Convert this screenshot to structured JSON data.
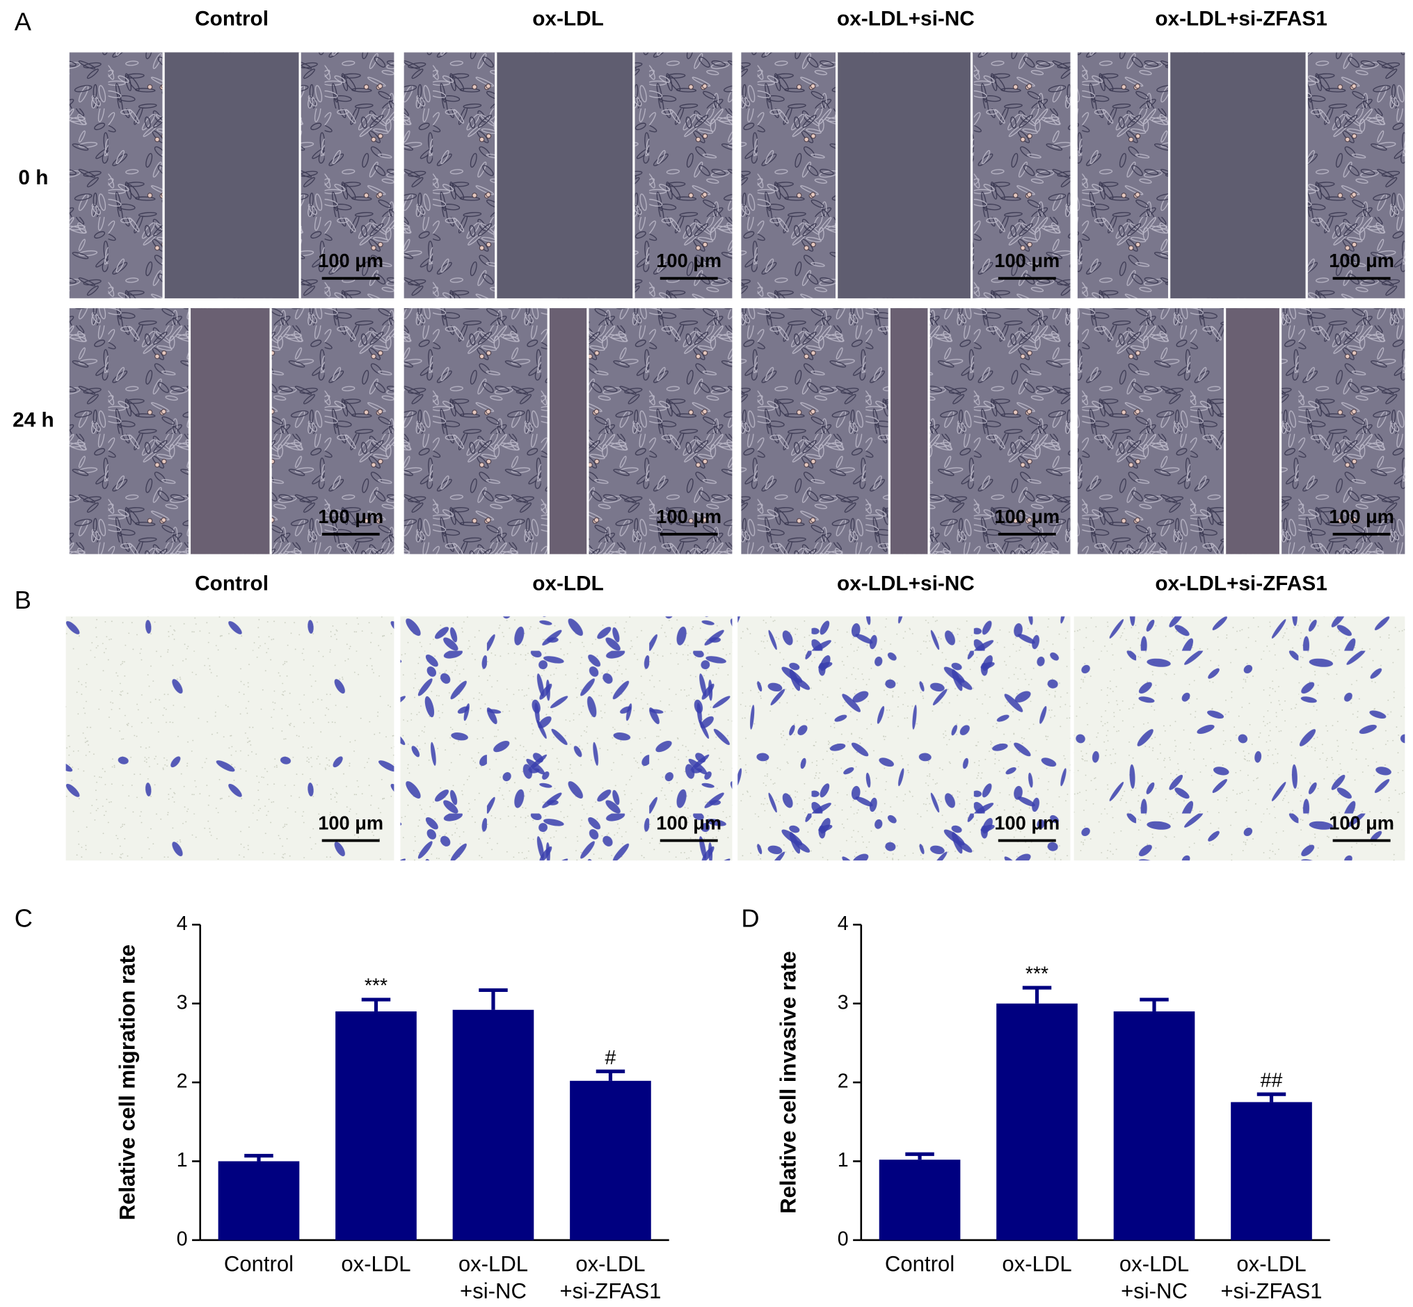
{
  "panel_labels": [
    "A",
    "B",
    "C",
    "D"
  ],
  "columns": [
    "Control",
    "ox-LDL",
    "ox-LDL+si-NC",
    "ox-LDL+si-ZFAS1"
  ],
  "rows": [
    "0 h",
    "24 h"
  ],
  "scale_bar": "100 μm",
  "chart_data": [
    {
      "type": "bar",
      "ylabel": "Relative cell migration rate",
      "categories": [
        [
          "Control"
        ],
        [
          "ox-LDL"
        ],
        [
          "ox-LDL",
          "+si-NC"
        ],
        [
          "ox-LDL",
          "+si-ZFAS1"
        ]
      ],
      "values": [
        1.0,
        2.9,
        2.92,
        2.02
      ],
      "errors": [
        0.07,
        0.15,
        0.25,
        0.12
      ],
      "color": "#000080",
      "ylim": [
        0,
        4
      ],
      "yticks": [
        0,
        1,
        2,
        3,
        4
      ],
      "annotations": [
        {
          "category": 1,
          "text": "***"
        },
        {
          "category": 3,
          "text": "#"
        }
      ]
    },
    {
      "type": "bar",
      "ylabel": "Relative cell invasive rate",
      "categories": [
        [
          "Control"
        ],
        [
          "ox-LDL"
        ],
        [
          "ox-LDL",
          "+si-NC"
        ],
        [
          "ox-LDL",
          "+si-ZFAS1"
        ]
      ],
      "values": [
        1.02,
        3.0,
        2.9,
        1.75
      ],
      "errors": [
        0.07,
        0.2,
        0.15,
        0.1
      ],
      "color": "#000080",
      "ylim": [
        0,
        4
      ],
      "yticks": [
        0,
        1,
        2,
        3,
        4
      ],
      "annotations": [
        {
          "category": 1,
          "text": "***"
        },
        {
          "category": 3,
          "text": "##"
        }
      ]
    }
  ]
}
